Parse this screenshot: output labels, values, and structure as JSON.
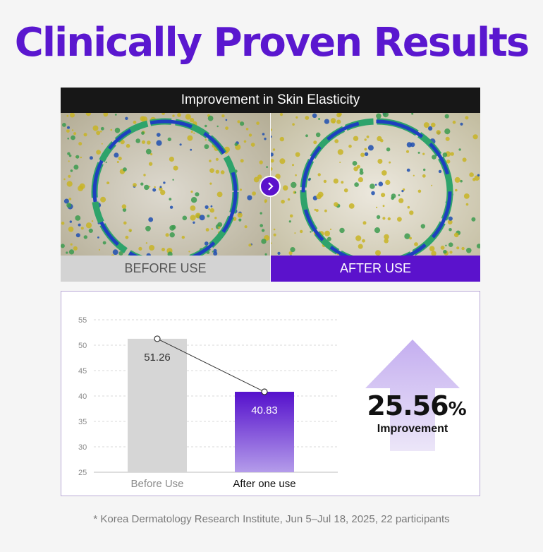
{
  "headline": "Clinically Proven Results",
  "panel": {
    "title": "Improvement in Skin Elasticity",
    "before_label": "BEFORE USE",
    "after_label": "AFTER USE"
  },
  "colors": {
    "accent": "#5b12cc",
    "headline": "#5a17cf",
    "before_bar": "#d6d6d6"
  },
  "chart_data": {
    "type": "bar",
    "categories": [
      "Before Use",
      "After one use"
    ],
    "values": [
      51.26,
      40.83
    ],
    "value_labels": [
      "51.26",
      "40.83"
    ],
    "ylim": [
      25,
      55
    ],
    "yticks": [
      25,
      30,
      35,
      40,
      45,
      50,
      55
    ],
    "grid": true,
    "connector_line": true,
    "title": "",
    "xlabel": "",
    "ylabel": ""
  },
  "improvement": {
    "value": "25.56",
    "unit": "%",
    "label": "Improvement"
  },
  "footnote": "* Korea Dermatology Research Institute, Jun 5–Jul 18, 2025, 22 participants"
}
